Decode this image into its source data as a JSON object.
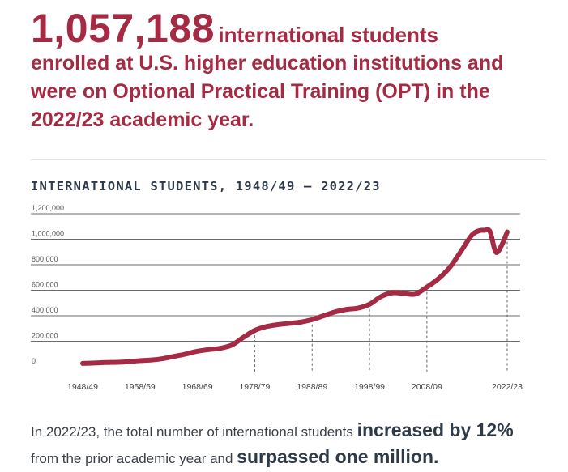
{
  "headline": {
    "number": "1,057,188",
    "first_line": "international students",
    "lines": [
      "enrolled at U.S. higher education institutions and",
      "were on Optional Practical Training (OPT) in the",
      "2022/23 academic year."
    ]
  },
  "colors": {
    "accent": "#a52a43",
    "text_dark": "#2f3a48",
    "gridline": "#6b6b6b"
  },
  "chart_data": {
    "type": "line",
    "title": "INTERNATIONAL STUDENTS, 1948/49 – 2022/23",
    "xlabel": "",
    "ylabel": "",
    "ylim": [
      0,
      1200000
    ],
    "grid": true,
    "y_ticks": [
      {
        "value": 0,
        "label": "0"
      },
      {
        "value": 200000,
        "label": "200,000"
      },
      {
        "value": 400000,
        "label": "400,000"
      },
      {
        "value": 600000,
        "label": "600,000"
      },
      {
        "value": 800000,
        "label": "800,000"
      },
      {
        "value": 1000000,
        "label": "1,000,000"
      },
      {
        "value": 1200000,
        "label": "1,200,000"
      }
    ],
    "x_ticks": [
      {
        "year": 1948,
        "label": "1948/49"
      },
      {
        "year": 1958,
        "label": "1958/59"
      },
      {
        "year": 1968,
        "label": "1968/69"
      },
      {
        "year": 1978,
        "label": "1978/79"
      },
      {
        "year": 1988,
        "label": "1988/89"
      },
      {
        "year": 1998,
        "label": "1998/99"
      },
      {
        "year": 2008,
        "label": "2008/09"
      },
      {
        "year": 2022,
        "label": "2022/23"
      }
    ],
    "x": [
      1948,
      1950,
      1952,
      1954,
      1956,
      1958,
      1960,
      1962,
      1964,
      1966,
      1968,
      1970,
      1972,
      1974,
      1976,
      1978,
      1980,
      1982,
      1984,
      1986,
      1988,
      1990,
      1992,
      1994,
      1996,
      1998,
      2000,
      2002,
      2004,
      2006,
      2008,
      2010,
      2012,
      2014,
      2015,
      2016,
      2017,
      2018,
      2019,
      2020,
      2021,
      2022
    ],
    "values": [
      26000,
      29000,
      33000,
      35000,
      40000,
      48000,
      53000,
      64000,
      82000,
      100000,
      122000,
      135000,
      145000,
      170000,
      230000,
      285000,
      315000,
      330000,
      340000,
      350000,
      370000,
      400000,
      430000,
      450000,
      460000,
      490000,
      550000,
      580000,
      575000,
      570000,
      625000,
      690000,
      780000,
      910000,
      980000,
      1040000,
      1065000,
      1070000,
      1060000,
      900000,
      950000,
      1057188
    ]
  },
  "footer": {
    "part1": "In 2022/23, the total number of international students ",
    "bold1": "increased by 12%",
    "part2": " from the prior academic year and ",
    "bold2": "surpassed one million."
  }
}
